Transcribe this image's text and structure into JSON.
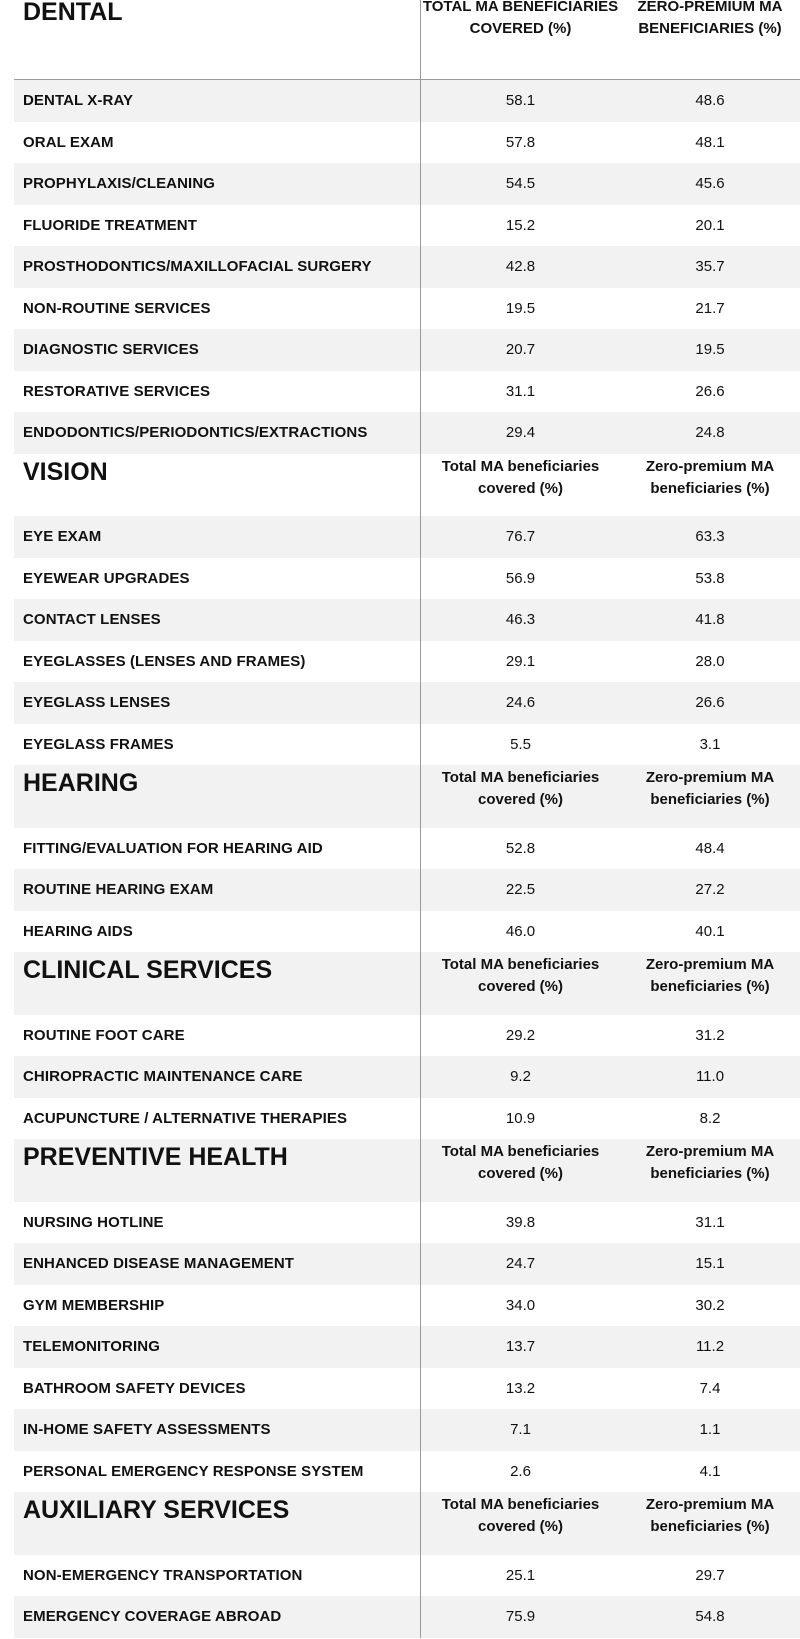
{
  "sections": [
    {
      "title": "DENTAL",
      "col1": "TOTAL MA BENEFICIARIES COVERED (%)",
      "col2": "ZERO-PREMIUM MA BENEFICIARIES (%)",
      "rows": [
        {
          "label": "DENTAL X-RAY",
          "total": "58.1",
          "zero": "48.6"
        },
        {
          "label": "ORAL EXAM",
          "total": "57.8",
          "zero": "48.1"
        },
        {
          "label": "PROPHYLAXIS/CLEANING",
          "total": "54.5",
          "zero": "45.6"
        },
        {
          "label": "FLUORIDE TREATMENT",
          "total": "15.2",
          "zero": "20.1"
        },
        {
          "label": "PROSTHODONTICS/MAXILLOFACIAL SURGERY",
          "total": "42.8",
          "zero": "35.7"
        },
        {
          "label": "NON-ROUTINE SERVICES",
          "total": "19.5",
          "zero": "21.7"
        },
        {
          "label": "DIAGNOSTIC SERVICES",
          "total": "20.7",
          "zero": "19.5"
        },
        {
          "label": "RESTORATIVE SERVICES",
          "total": "31.1",
          "zero": "26.6"
        },
        {
          "label": "ENDODONTICS/PERIODONTICS/EXTRACTIONS",
          "total": "29.4",
          "zero": "24.8"
        }
      ]
    },
    {
      "title": "VISION",
      "col1": "Total MA beneficiaries covered (%)",
      "col2": "Zero-premium MA beneficiaries (%)",
      "rows": [
        {
          "label": "EYE EXAM",
          "total": "76.7",
          "zero": "63.3"
        },
        {
          "label": "EYEWEAR UPGRADES",
          "total": "56.9",
          "zero": "53.8"
        },
        {
          "label": "CONTACT LENSES",
          "total": "46.3",
          "zero": "41.8"
        },
        {
          "label": "EYEGLASSES (LENSES AND FRAMES)",
          "total": "29.1",
          "zero": "28.0"
        },
        {
          "label": "EYEGLASS LENSES",
          "total": "24.6",
          "zero": "26.6"
        },
        {
          "label": "EYEGLASS FRAMES",
          "total": "5.5",
          "zero": "3.1"
        }
      ]
    },
    {
      "title": "HEARING",
      "col1": "Total MA beneficiaries covered (%)",
      "col2": "Zero-premium MA beneficiaries (%)",
      "rows": [
        {
          "label": "FITTING/EVALUATION FOR HEARING AID",
          "total": "52.8",
          "zero": "48.4"
        },
        {
          "label": "ROUTINE HEARING EXAM",
          "total": "22.5",
          "zero": "27.2"
        },
        {
          "label": "HEARING AIDS",
          "total": "46.0",
          "zero": "40.1"
        }
      ]
    },
    {
      "title": "CLINICAL SERVICES",
      "col1": "Total MA beneficiaries covered (%)",
      "col2": "Zero-premium MA beneficiaries (%)",
      "rows": [
        {
          "label": "ROUTINE FOOT CARE",
          "total": "29.2",
          "zero": "31.2"
        },
        {
          "label": "CHIROPRACTIC MAINTENANCE CARE",
          "total": "9.2",
          "zero": "11.0"
        },
        {
          "label": "ACUPUNCTURE / ALTERNATIVE THERAPIES",
          "total": "10.9",
          "zero": "8.2"
        }
      ]
    },
    {
      "title": "PREVENTIVE HEALTH",
      "col1": "Total MA beneficiaries covered (%)",
      "col2": "Zero-premium MA beneficiaries (%)",
      "rows": [
        {
          "label": "NURSING HOTLINE",
          "total": "39.8",
          "zero": "31.1"
        },
        {
          "label": "ENHANCED DISEASE MANAGEMENT",
          "total": "24.7",
          "zero": "15.1"
        },
        {
          "label": "GYM MEMBERSHIP",
          "total": "34.0",
          "zero": "30.2"
        },
        {
          "label": "TELEMONITORING",
          "total": "13.7",
          "zero": "11.2"
        },
        {
          "label": "BATHROOM SAFETY DEVICES",
          "total": "13.2",
          "zero": "7.4"
        },
        {
          "label": "IN-HOME SAFETY ASSESSMENTS",
          "total": "7.1",
          "zero": "1.1"
        },
        {
          "label": "PERSONAL EMERGENCY RESPONSE SYSTEM",
          "total": "2.6",
          "zero": "4.1"
        }
      ]
    },
    {
      "title": "AUXILIARY SERVICES",
      "col1": "Total MA beneficiaries covered (%)",
      "col2": "Zero-premium MA beneficiaries (%)",
      "rows": [
        {
          "label": "NON-EMERGENCY TRANSPORTATION",
          "total": "25.1",
          "zero": "29.7"
        },
        {
          "label": "EMERGENCY COVERAGE ABROAD",
          "total": "75.9",
          "zero": "54.8"
        }
      ]
    }
  ]
}
